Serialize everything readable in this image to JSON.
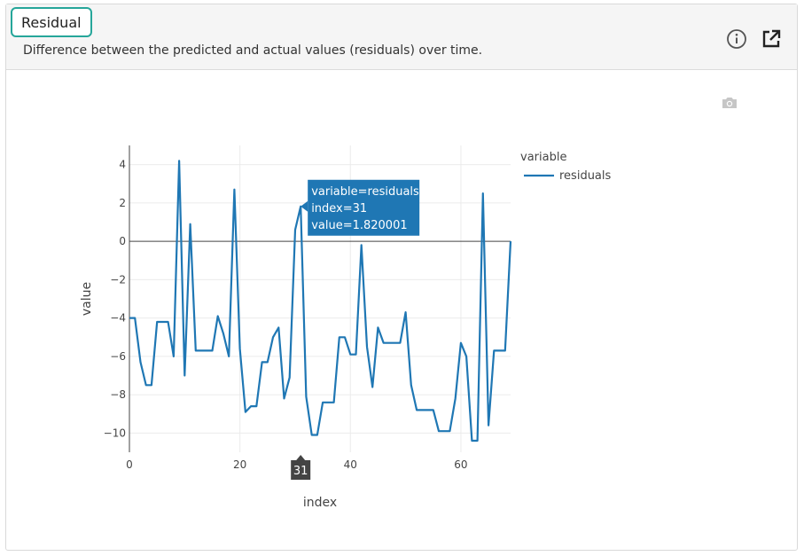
{
  "header": {
    "title": "Residual",
    "subtitle": "Difference between the predicted and actual values (residuals) over time."
  },
  "icons": {
    "info": "info-icon",
    "external_link": "external-link-icon",
    "camera": "camera-icon"
  },
  "colors": {
    "series": "#1f77b4",
    "accent": "#26a69a",
    "tooltip_bg": "#1f77b4",
    "hover_label_bg": "#444444"
  },
  "chart_data": {
    "type": "line",
    "xlabel": "index",
    "ylabel": "value",
    "xlim": [
      0,
      69
    ],
    "ylim": [
      -11,
      5
    ],
    "x_ticks": [
      0,
      20,
      40,
      60
    ],
    "y_ticks": [
      4,
      2,
      0,
      -2,
      -4,
      -6,
      -8,
      -10
    ],
    "legend": {
      "title": "variable",
      "position": "top-right"
    },
    "grid": true,
    "series": [
      {
        "name": "residuals",
        "x": [
          0,
          1,
          2,
          3,
          4,
          5,
          6,
          7,
          8,
          9,
          10,
          11,
          12,
          13,
          14,
          15,
          16,
          17,
          18,
          19,
          20,
          21,
          22,
          23,
          24,
          25,
          26,
          27,
          28,
          29,
          30,
          31,
          32,
          33,
          34,
          35,
          36,
          37,
          38,
          39,
          40,
          41,
          42,
          43,
          44,
          45,
          46,
          47,
          48,
          49,
          50,
          51,
          52,
          53,
          54,
          55,
          56,
          57,
          58,
          59,
          60,
          61,
          62,
          63,
          64,
          65,
          66,
          67,
          68,
          69
        ],
        "values": [
          -4,
          -4,
          -6.3,
          -7.5,
          -7.5,
          -4.2,
          -4.2,
          -4.2,
          -6,
          4.2,
          -7,
          0.9,
          -5.7,
          -5.7,
          -5.7,
          -5.7,
          -3.9,
          -4.8,
          -6,
          2.7,
          -5.6,
          -8.9,
          -8.6,
          -8.6,
          -6.3,
          -6.3,
          -5,
          -4.5,
          -8.2,
          -7.1,
          0.6,
          1.820001,
          -8.1,
          -10.1,
          -10.1,
          -8.4,
          -8.4,
          -8.4,
          -5,
          -5,
          -5.9,
          -5.9,
          -0.2,
          -5.5,
          -7.6,
          -4.5,
          -5.3,
          -5.3,
          -5.3,
          -5.3,
          -3.7,
          -7.5,
          -8.8,
          -8.8,
          -8.8,
          -8.8,
          -9.9,
          -9.9,
          -9.9,
          -8.2,
          -5.3,
          -6,
          -10.4,
          -10.4,
          2.5,
          -9.6,
          -5.7,
          -5.7,
          -5.7,
          0
        ]
      }
    ],
    "hover": {
      "variable_line": "variable=residuals",
      "index_line": "index=31",
      "value_line": "value=1.820001",
      "x_label": "31"
    }
  }
}
